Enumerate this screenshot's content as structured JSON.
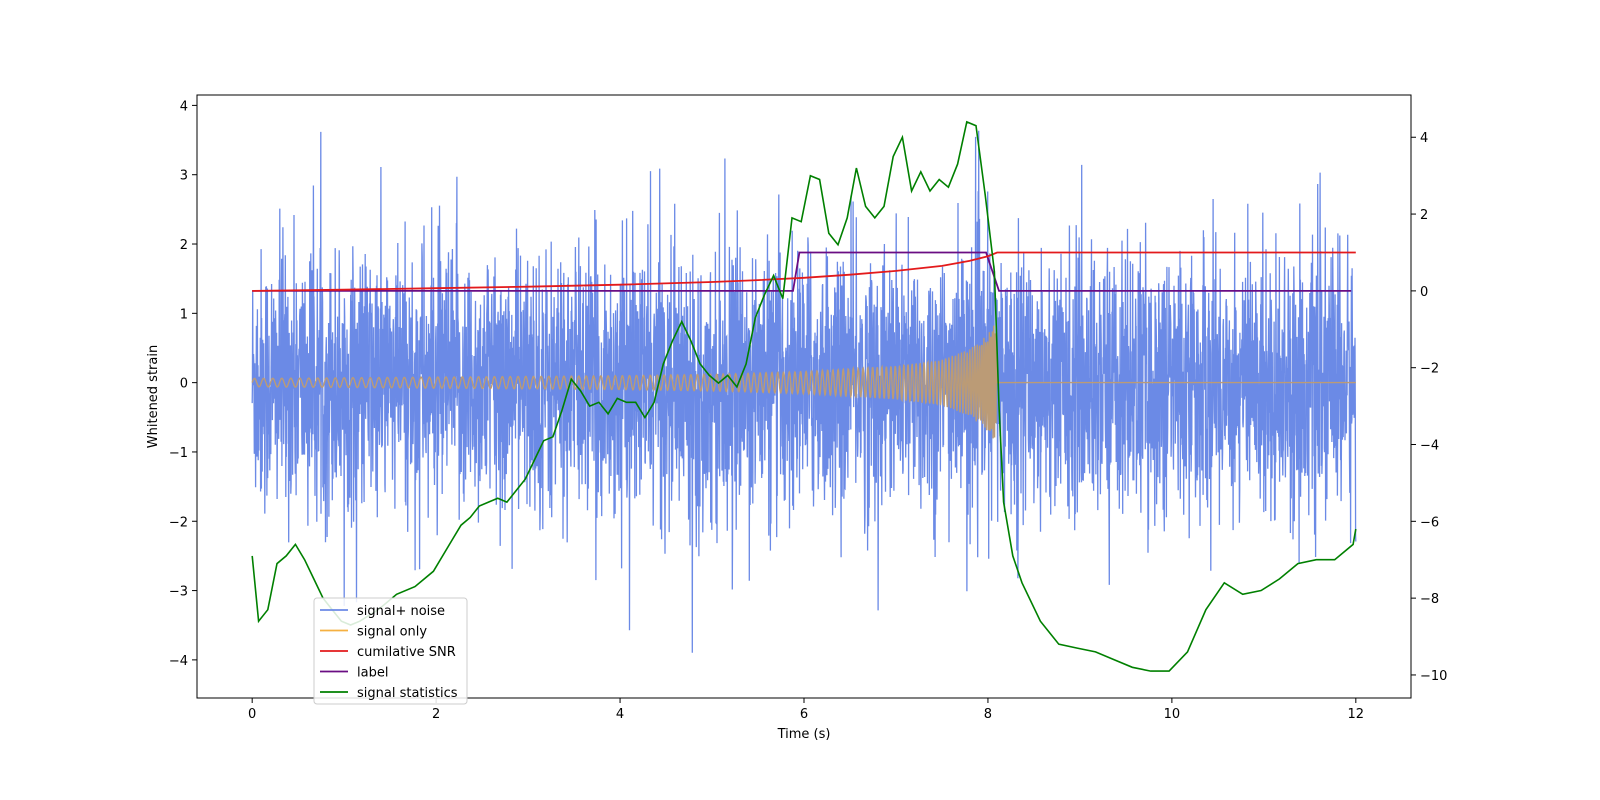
{
  "chart_data": {
    "type": "line",
    "xlabel": "Time (s)",
    "ylabel": "Whitened strain",
    "xlim": [
      -0.6,
      12.6
    ],
    "ylim": [
      -4.55,
      4.15
    ],
    "ylim_right": [
      -10.6,
      5.1
    ],
    "x_ticks": [
      0,
      2,
      4,
      6,
      8,
      10,
      12
    ],
    "x_tick_labels": [
      "0",
      "2",
      "4",
      "6",
      "8",
      "10",
      "12"
    ],
    "y_ticks": [
      -4,
      -3,
      -2,
      -1,
      0,
      1,
      2,
      3,
      4
    ],
    "y_tick_labels": [
      "−4",
      "−3",
      "−2",
      "−1",
      "0",
      "1",
      "2",
      "3",
      "4"
    ],
    "y_right_ticks": [
      -10,
      -8,
      -6,
      -4,
      -2,
      0,
      2,
      4
    ],
    "y_right_tick_labels": [
      "−10",
      "−8",
      "−6",
      "−4",
      "−2",
      "0",
      "2",
      "4"
    ],
    "grid": false,
    "legend_position": "lower-left",
    "colors": {
      "signal_noise": "#6b8ae6",
      "signal_only": "#f5b041",
      "signal_overlap": "#bb9b76",
      "snr": "#e31a1c",
      "label": "#6a0d83",
      "statistics": "#008000"
    },
    "series": [
      {
        "name": "signal+ noise",
        "axis": "left",
        "description_range": [
          -4.15,
          3.75
        ],
        "x_range": [
          0,
          12
        ]
      },
      {
        "name": "signal only",
        "axis": "left",
        "x": [
          0,
          1,
          2,
          3,
          4,
          5,
          6,
          7,
          7.5,
          7.8,
          8.0,
          8.1,
          8.15,
          12
        ],
        "envelope": [
          0.06,
          0.07,
          0.08,
          0.09,
          0.1,
          0.12,
          0.16,
          0.24,
          0.33,
          0.48,
          0.7,
          0.9,
          0.0,
          0.0
        ]
      },
      {
        "name": "cumilative SNR",
        "axis": "right",
        "x": [
          0,
          1,
          2,
          3,
          4,
          5,
          5.5,
          6,
          6.5,
          7,
          7.5,
          7.8,
          8.0,
          8.1,
          12
        ],
        "values": [
          0,
          0.03,
          0.07,
          0.11,
          0.16,
          0.23,
          0.28,
          0.34,
          0.42,
          0.52,
          0.65,
          0.78,
          0.9,
          1.0,
          1.0
        ]
      },
      {
        "name": "label",
        "axis": "right",
        "x": [
          0,
          5.88,
          5.95,
          7.98,
          8.12,
          11.95
        ],
        "values": [
          0,
          0,
          1,
          1,
          0,
          0
        ]
      },
      {
        "name": "signal statistics",
        "axis": "right",
        "x": [
          0,
          0.07,
          0.17,
          0.27,
          0.37,
          0.47,
          0.57,
          0.67,
          0.77,
          0.87,
          0.97,
          1.07,
          1.17,
          1.37,
          1.57,
          1.77,
          1.97,
          2.17,
          2.27,
          2.37,
          2.47,
          2.57,
          2.67,
          2.77,
          2.87,
          2.97,
          3.07,
          3.17,
          3.27,
          3.37,
          3.47,
          3.57,
          3.67,
          3.77,
          3.87,
          3.97,
          4.07,
          4.17,
          4.27,
          4.37,
          4.47,
          4.57,
          4.67,
          4.77,
          4.87,
          4.97,
          5.07,
          5.17,
          5.27,
          5.37,
          5.47,
          5.57,
          5.67,
          5.77,
          5.87,
          5.97,
          6.07,
          6.17,
          6.27,
          6.37,
          6.47,
          6.57,
          6.67,
          6.77,
          6.87,
          6.97,
          7.07,
          7.17,
          7.27,
          7.37,
          7.47,
          7.57,
          7.67,
          7.77,
          7.87,
          7.97,
          8.07,
          8.12,
          8.17,
          8.27,
          8.37,
          8.57,
          8.77,
          8.97,
          9.17,
          9.37,
          9.57,
          9.77,
          9.97,
          10.17,
          10.37,
          10.57,
          10.77,
          10.97,
          11.17,
          11.37,
          11.57,
          11.77,
          11.97,
          12.0
        ],
        "values": [
          -6.9,
          -8.6,
          -8.3,
          -7.1,
          -6.9,
          -6.6,
          -7.0,
          -7.5,
          -8.0,
          -8.3,
          -8.6,
          -8.7,
          -8.6,
          -8.3,
          -7.9,
          -7.7,
          -7.3,
          -6.5,
          -6.1,
          -5.9,
          -5.6,
          -5.5,
          -5.4,
          -5.5,
          -5.2,
          -4.9,
          -4.4,
          -3.9,
          -3.8,
          -3.1,
          -2.3,
          -2.6,
          -3.0,
          -2.9,
          -3.2,
          -2.8,
          -2.9,
          -2.9,
          -3.3,
          -2.9,
          -1.9,
          -1.3,
          -0.8,
          -1.3,
          -1.9,
          -2.2,
          -2.4,
          -2.2,
          -2.5,
          -1.9,
          -0.7,
          -0.1,
          0.4,
          -0.2,
          1.9,
          1.8,
          3.0,
          2.9,
          1.5,
          1.2,
          1.9,
          3.2,
          2.2,
          1.9,
          2.2,
          3.5,
          4.0,
          2.6,
          3.1,
          2.6,
          2.9,
          2.7,
          3.3,
          4.4,
          4.3,
          2.5,
          0.5,
          -3.0,
          -5.5,
          -6.9,
          -7.6,
          -8.6,
          -9.2,
          -9.3,
          -9.4,
          -9.6,
          -9.8,
          -9.9,
          -9.9,
          -9.4,
          -8.3,
          -7.6,
          -7.9,
          -7.8,
          -7.5,
          -7.1,
          -7.0,
          -7.0,
          -6.6,
          -6.2
        ]
      }
    ]
  }
}
